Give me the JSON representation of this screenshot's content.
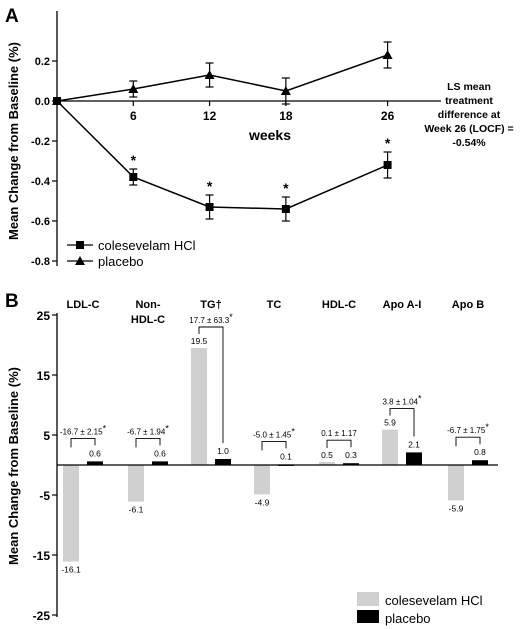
{
  "chart_data": [
    {
      "type": "line",
      "panel_label": "A",
      "ylabel": "Mean Change from Baseline (%)",
      "xlabel": "weeks",
      "x": [
        0,
        6,
        12,
        18,
        26
      ],
      "x_ticks": [
        "6",
        "12",
        "18",
        "26"
      ],
      "ylim": [
        -0.8,
        0.3
      ],
      "y_ticks": [
        "0.2",
        "0.0",
        "-0.2",
        "-0.4",
        "-0.6",
        "-0.8"
      ],
      "y_tick_values": [
        0.2,
        0.0,
        -0.2,
        -0.4,
        -0.6,
        -0.8
      ],
      "series": [
        {
          "name": "colesevelam HCl",
          "marker": "square",
          "values": [
            0.0,
            -0.38,
            -0.53,
            -0.54,
            -0.32
          ],
          "err": [
            0,
            0.04,
            0.06,
            0.06,
            0.065
          ],
          "annotations": [
            "",
            "*",
            "*",
            "*",
            "*"
          ]
        },
        {
          "name": "placebo",
          "marker": "triangle",
          "values": [
            0.0,
            0.06,
            0.13,
            0.05,
            0.23
          ],
          "err": [
            0,
            0.04,
            0.06,
            0.065,
            0.065
          ]
        }
      ],
      "annotation": [
        "LS mean",
        "treatment",
        "difference at",
        "Week 26 (LOCF) =",
        "-0.54%"
      ],
      "legend_position": "bottom-left"
    },
    {
      "type": "bar",
      "panel_label": "B",
      "ylabel": "Mean Change from Baseline (%)",
      "ylim": [
        -25,
        25
      ],
      "y_ticks": [
        "25",
        "15",
        "5",
        "-5",
        "-15",
        "-25"
      ],
      "y_tick_values": [
        25,
        15,
        5,
        -5,
        -15,
        -25
      ],
      "categories": [
        [
          "LDL-C"
        ],
        [
          "Non-",
          "HDL-C"
        ],
        [
          "TG†"
        ],
        [
          "TC"
        ],
        [
          "HDL-C"
        ],
        [
          "Apo A-I"
        ],
        [
          "Apo B"
        ]
      ],
      "series": [
        {
          "name": "colesevelam HCl",
          "color": "#d0d0d0",
          "values": [
            -16.1,
            -6.1,
            19.5,
            -4.9,
            0.5,
            5.9,
            -5.9
          ],
          "labels": [
            "-16.1",
            "-6.1",
            "19.5",
            "-4.9",
            "0.5",
            "5.9",
            "-5.9"
          ]
        },
        {
          "name": "placebo",
          "color": "#000000",
          "values": [
            0.6,
            0.6,
            1.0,
            0.1,
            0.3,
            2.1,
            0.8
          ],
          "labels": [
            "0.6",
            "0.6",
            "1.0",
            "0.1",
            "0.3",
            "2.1",
            "0.8"
          ]
        }
      ],
      "differences": [
        {
          "text": "-16.7 ± 2.15",
          "star": "*"
        },
        {
          "text": "-6.7 ± 1.94",
          "star": "*"
        },
        {
          "text": "17.7 ± 63.3",
          "star": "*"
        },
        {
          "text": "-5.0 ± 1.45",
          "star": "*"
        },
        {
          "text": "0.1 ± 1.17",
          "star": ""
        },
        {
          "text": "3.8 ± 1.04",
          "star": "*"
        },
        {
          "text": "-6.7 ± 1.75",
          "star": "*"
        }
      ],
      "legend_position": "bottom-right"
    }
  ]
}
